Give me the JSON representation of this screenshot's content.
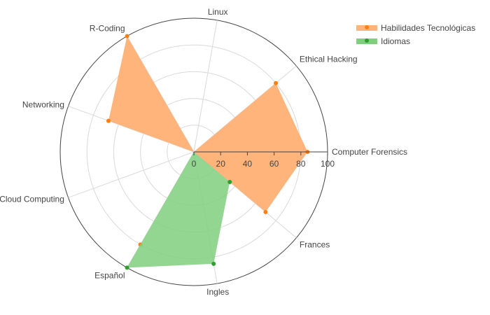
{
  "chart_data": {
    "type": "radar",
    "title": "",
    "categories": [
      "Computer Forensics",
      "Ethical Hacking",
      "Linux",
      "R-Coding",
      "Networking",
      "Cloud Computing",
      "Español",
      "Ingles",
      "Frances"
    ],
    "radial_range": [
      0,
      100
    ],
    "radial_ticks": [
      "0",
      "20",
      "40",
      "60",
      "80",
      "100"
    ],
    "grid": true,
    "legend_position": "top-right",
    "series": [
      {
        "name": "Habilidades Tecnológicas",
        "color": "#ff7f0e",
        "fill_color": "#ffb47b",
        "values": [
          85,
          80,
          0,
          100,
          68,
          0,
          80,
          0,
          70
        ]
      },
      {
        "name": "Idiomas",
        "color": "#2ca02c",
        "fill_color": "#7fcf7f",
        "values": [
          0,
          0,
          0,
          0,
          0,
          0,
          100,
          85,
          35
        ]
      }
    ]
  }
}
